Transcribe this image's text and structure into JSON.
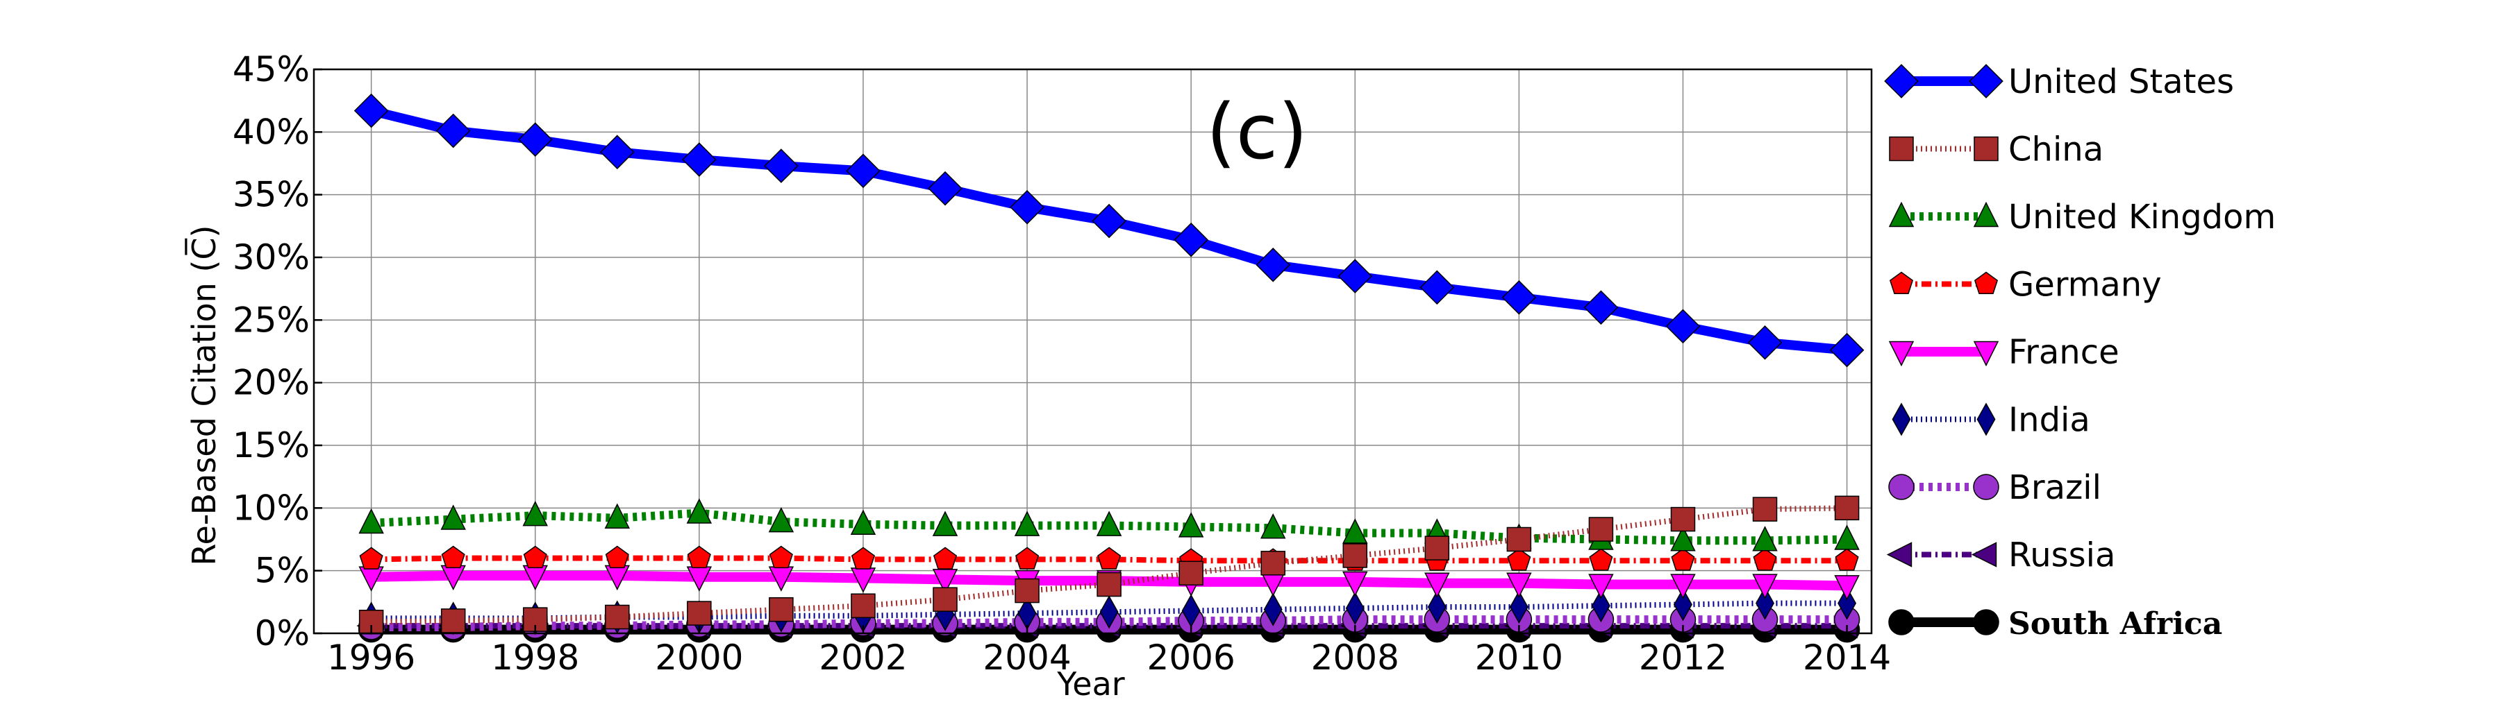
{
  "chart_data": {
    "type": "line",
    "annotation": "(c)",
    "xlabel": "Year",
    "ylabel": "Re-Based Citation (C̅)",
    "xlim": [
      1995.3,
      2014.3
    ],
    "ylim": [
      0,
      45
    ],
    "x_ticks": [
      1996,
      1998,
      2000,
      2002,
      2004,
      2006,
      2008,
      2010,
      2012,
      2014
    ],
    "y_ticks": [
      0,
      5,
      10,
      15,
      20,
      25,
      30,
      35,
      40,
      45
    ],
    "y_tick_suffix": "%",
    "grid": true,
    "legend_position": "right-outside",
    "x": [
      1996,
      1997,
      1998,
      1999,
      2000,
      2001,
      2002,
      2003,
      2004,
      2005,
      2006,
      2007,
      2008,
      2009,
      2010,
      2011,
      2012,
      2013,
      2014
    ],
    "series": [
      {
        "name": "United States",
        "color": "#0000ff",
        "marker": "diamond",
        "dash": "solid",
        "width": 14,
        "values": [
          41.7,
          40.1,
          39.4,
          38.4,
          37.8,
          37.3,
          36.9,
          35.5,
          34.0,
          32.9,
          31.4,
          29.4,
          28.5,
          27.6,
          26.8,
          26.0,
          24.5,
          23.2,
          22.6
        ]
      },
      {
        "name": "China",
        "color": "#a52a2a",
        "marker": "square",
        "dash": "dotted",
        "width": 8,
        "values": [
          0.9,
          1.0,
          1.1,
          1.3,
          1.6,
          1.9,
          2.2,
          2.7,
          3.4,
          3.9,
          4.8,
          5.6,
          6.2,
          6.8,
          7.5,
          8.3,
          9.1,
          9.9,
          10.0
        ]
      },
      {
        "name": "United Kingdom",
        "color": "#008000",
        "marker": "triangle-up",
        "dash": "dotted-thick",
        "width": 12,
        "values": [
          8.8,
          9.1,
          9.4,
          9.2,
          9.6,
          8.9,
          8.7,
          8.6,
          8.6,
          8.6,
          8.5,
          8.4,
          8.0,
          8.0,
          7.6,
          7.5,
          7.4,
          7.4,
          7.5
        ]
      },
      {
        "name": "Germany",
        "color": "#ff0000",
        "marker": "pentagon",
        "dash": "dashdot",
        "width": 8,
        "values": [
          5.9,
          6.0,
          6.0,
          6.0,
          6.0,
          6.0,
          5.9,
          5.9,
          5.9,
          5.9,
          5.8,
          5.8,
          5.8,
          5.8,
          5.8,
          5.8,
          5.8,
          5.8,
          5.8
        ]
      },
      {
        "name": "France",
        "color": "#ff00ff",
        "marker": "triangle-down",
        "dash": "solid",
        "width": 14,
        "values": [
          4.5,
          4.6,
          4.6,
          4.6,
          4.5,
          4.5,
          4.4,
          4.3,
          4.2,
          4.2,
          4.1,
          4.1,
          4.1,
          4.0,
          4.0,
          3.9,
          3.9,
          3.9,
          3.8
        ]
      },
      {
        "name": "India",
        "color": "#00008b",
        "marker": "thin-diamond",
        "dash": "dotted",
        "width": 8,
        "values": [
          1.2,
          1.2,
          1.2,
          1.3,
          1.3,
          1.4,
          1.4,
          1.5,
          1.6,
          1.7,
          1.8,
          1.9,
          2.0,
          2.1,
          2.1,
          2.2,
          2.3,
          2.4,
          2.4
        ]
      },
      {
        "name": "Brazil",
        "color": "#9932cc",
        "marker": "circle",
        "dash": "dotted-thick",
        "width": 12,
        "values": [
          0.5,
          0.5,
          0.6,
          0.6,
          0.7,
          0.7,
          0.8,
          0.8,
          0.9,
          0.9,
          1.0,
          1.0,
          1.1,
          1.1,
          1.1,
          1.1,
          1.1,
          1.1,
          1.1
        ]
      },
      {
        "name": "Russia",
        "color": "#4b0082",
        "marker": "triangle-left",
        "dash": "dashdot",
        "width": 8,
        "values": [
          0.6,
          0.6,
          0.6,
          0.6,
          0.6,
          0.6,
          0.6,
          0.6,
          0.6,
          0.6,
          0.6,
          0.6,
          0.6,
          0.6,
          0.6,
          0.6,
          0.6,
          0.6,
          0.6
        ]
      },
      {
        "name": "South Africa",
        "color": "#000000",
        "marker": "circle",
        "dash": "solid",
        "width": 14,
        "values": [
          0.3,
          0.3,
          0.3,
          0.3,
          0.3,
          0.3,
          0.3,
          0.3,
          0.3,
          0.3,
          0.3,
          0.3,
          0.3,
          0.3,
          0.3,
          0.3,
          0.3,
          0.3,
          0.3
        ]
      }
    ]
  }
}
